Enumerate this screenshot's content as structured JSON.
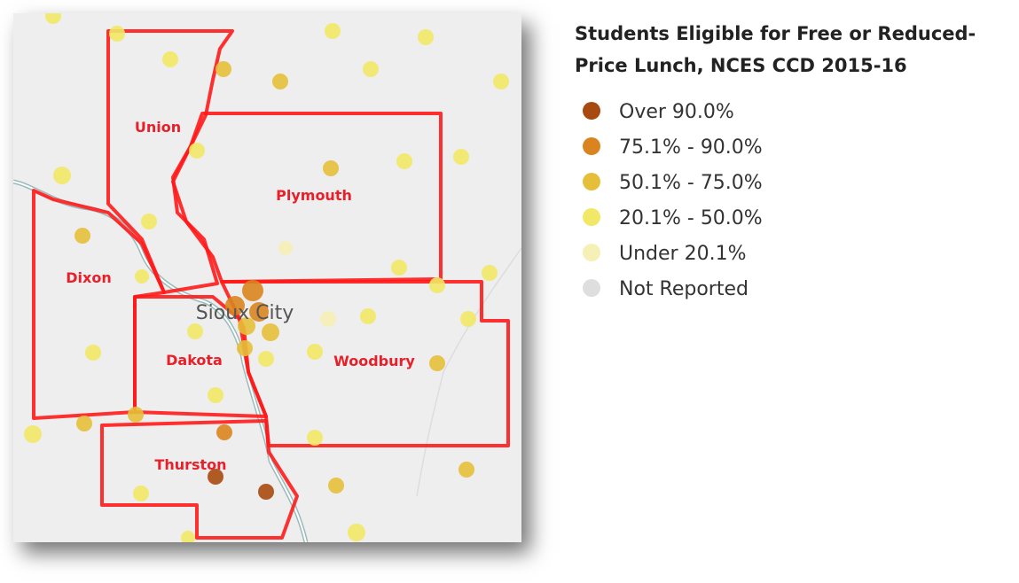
{
  "map": {
    "counties": [
      "Union",
      "Plymouth",
      "Dixon",
      "Dakota",
      "Woodbury",
      "Thurston"
    ],
    "city": "Sioux City"
  },
  "legend": {
    "title": "Students Eligible for Free or Reduced-Price Lunch, NCES CCD 2015-16",
    "items": [
      {
        "label": "Over 90.0%",
        "color": "#a84a10"
      },
      {
        "label": "75.1% - 90.0%",
        "color": "#d9841e"
      },
      {
        "label": "50.1% - 75.0%",
        "color": "#e6bf3a"
      },
      {
        "label": "20.1% - 50.0%",
        "color": "#f1e866"
      },
      {
        "label": "Under 20.1%",
        "color": "#f5f0b5"
      },
      {
        "label": "Not Reported",
        "color": "#dedede"
      }
    ]
  }
}
